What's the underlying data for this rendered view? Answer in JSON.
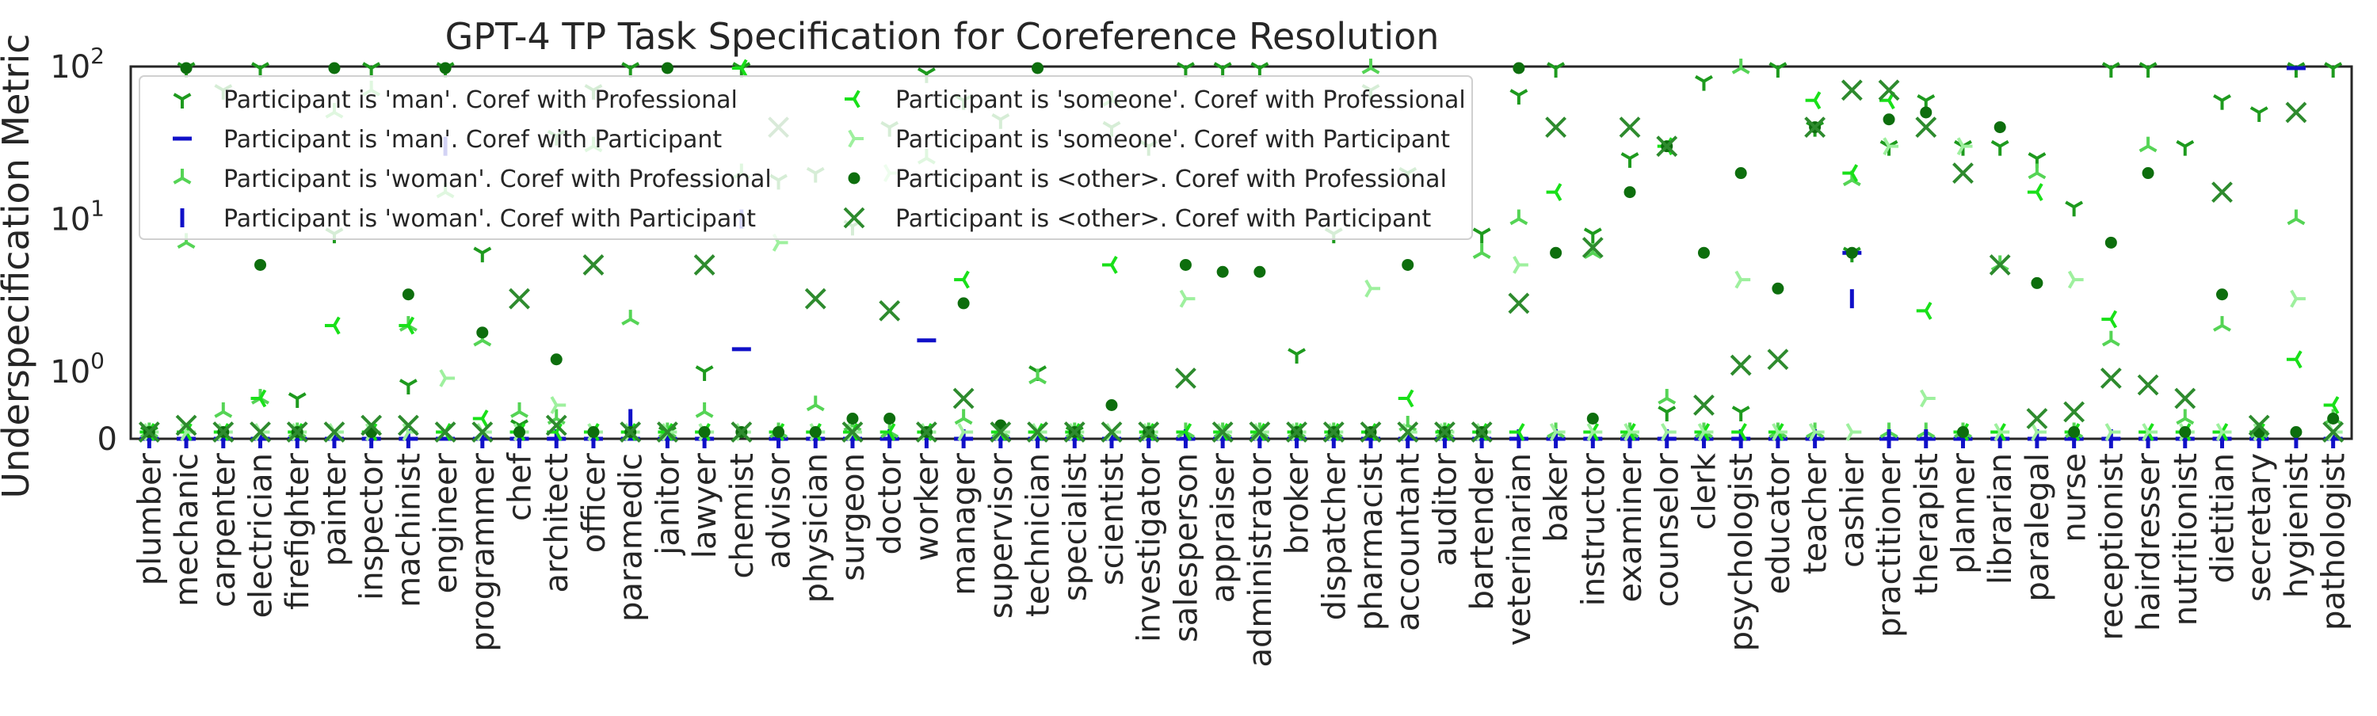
{
  "chart_data": {
    "type": "scatter",
    "title": "GPT-4 TP Task Specification for Coreference Resolution",
    "xlabel": "",
    "ylabel": "Underspecification Metric",
    "y_scale": "symlog",
    "y_ticks": [
      {
        "value": 0,
        "label": "0"
      },
      {
        "value": 1,
        "label": "10^0"
      },
      {
        "value": 10,
        "label": "10^1"
      },
      {
        "value": 100,
        "label": "10^2"
      }
    ],
    "ylim": [
      0,
      100
    ],
    "grid": false,
    "legend_position": "top-left",
    "categories": [
      "plumber",
      "mechanic",
      "carpenter",
      "electrician",
      "firefighter",
      "painter",
      "inspector",
      "machinist",
      "engineer",
      "programmer",
      "chef",
      "architect",
      "officer",
      "paramedic",
      "janitor",
      "lawyer",
      "chemist",
      "advisor",
      "physician",
      "surgeon",
      "doctor",
      "worker",
      "manager",
      "supervisor",
      "technician",
      "specialist",
      "scientist",
      "investigator",
      "salesperson",
      "appraiser",
      "administrator",
      "broker",
      "dispatcher",
      "pharmacist",
      "accountant",
      "auditor",
      "bartender",
      "veterinarian",
      "baker",
      "instructor",
      "examiner",
      "counselor",
      "clerk",
      "psychologist",
      "educator",
      "teacher",
      "cashier",
      "practitioner",
      "therapist",
      "planner",
      "librarian",
      "paralegal",
      "nurse",
      "receptionist",
      "hairdresser",
      "nutritionist",
      "dietitian",
      "secretary",
      "hygienist",
      "pathologist"
    ],
    "series": [
      {
        "name": "Participant is 'man'. Coref with Professional",
        "marker": "tri_down",
        "color": "#1e9a1e",
        "values": [
          0.1,
          100,
          70,
          100,
          0.6,
          8,
          100,
          0.8,
          100,
          6,
          0.2,
          35,
          70,
          100,
          0.1,
          1,
          100,
          18,
          20,
          9,
          40,
          90,
          60,
          45,
          1,
          0.1,
          40,
          30,
          100,
          100,
          100,
          1.3,
          8,
          70,
          20,
          0.05,
          8,
          65,
          100,
          8,
          25,
          0.4,
          80,
          0.4,
          100,
          40,
          6,
          30,
          60,
          30,
          30,
          25,
          12,
          100,
          100,
          30,
          60,
          50,
          100,
          100
        ]
      },
      {
        "name": "Participant is 'man'. Coref with Participant",
        "marker": "hline",
        "color": "#1010c8",
        "values": [
          0,
          0,
          0,
          0,
          0,
          0,
          0,
          0,
          0,
          0,
          0,
          0,
          0,
          0,
          0,
          0,
          1.4,
          0,
          0,
          0,
          0,
          1.6,
          0,
          0,
          0,
          0,
          0,
          0,
          0,
          0,
          0,
          0,
          0,
          0,
          0,
          0,
          0,
          0,
          0,
          0,
          0,
          0,
          0,
          0,
          0,
          0,
          6,
          0,
          0,
          0,
          0,
          0,
          0,
          0,
          0,
          0,
          0,
          0,
          100,
          0
        ]
      },
      {
        "name": "Participant is 'woman'. Coref with Professional",
        "marker": "tri_up",
        "color": "#55d455",
        "values": [
          0.1,
          7,
          0.4,
          0.6,
          0.1,
          50,
          70,
          2,
          15,
          1.6,
          0.4,
          0.3,
          30,
          2.2,
          0.1,
          0.4,
          20,
          0.1,
          0.5,
          0.2,
          0.1,
          25,
          0.3,
          0.1,
          0.9,
          0.1,
          60,
          0.1,
          0.1,
          0.1,
          0.1,
          0.1,
          0.1,
          100,
          0.2,
          0.1,
          6,
          10,
          0.1,
          6,
          0.1,
          0.6,
          0.1,
          100,
          0.1,
          0.1,
          18,
          0.1,
          0.1,
          0.1,
          5,
          20,
          0.1,
          1.6,
          30,
          0.3,
          2,
          0.1,
          10,
          0.3
        ]
      },
      {
        "name": "Participant is 'woman'. Coref with Participant",
        "marker": "vline",
        "color": "#1010c8",
        "values": [
          0,
          0,
          0,
          0,
          0,
          0,
          0,
          0,
          30,
          0,
          0,
          0,
          0,
          0.3,
          0,
          0,
          10,
          0,
          0,
          0,
          0,
          0,
          0,
          0,
          0,
          0,
          0,
          0,
          0,
          0,
          0,
          0,
          0,
          0,
          0,
          0,
          0,
          0,
          0,
          0,
          0,
          0,
          0,
          0,
          0,
          0,
          3,
          0,
          0,
          0,
          0,
          0,
          0,
          0,
          0,
          0,
          0,
          0,
          0,
          0
        ]
      },
      {
        "name": "Participant is 'someone'. Coref with Professional",
        "marker": "tri_left",
        "color": "#19e019",
        "values": [
          0.1,
          0.1,
          0.1,
          0.6,
          0.1,
          2,
          0.1,
          2,
          0.1,
          0.3,
          0.1,
          0.1,
          0.1,
          0.1,
          0.1,
          0.1,
          100,
          0.1,
          0.1,
          0.1,
          0.1,
          0.1,
          4,
          0.1,
          0.1,
          0.1,
          5,
          0.1,
          0.1,
          0.1,
          0.1,
          0.1,
          0.1,
          0.1,
          0.6,
          0.1,
          0.1,
          0.1,
          15,
          0.1,
          0.1,
          30,
          0.1,
          0.1,
          0.1,
          60,
          20,
          60,
          2.5,
          0.1,
          0.1,
          15,
          0.1,
          2.2,
          0.1,
          0.1,
          0.1,
          0.1,
          1.2,
          0.5
        ]
      },
      {
        "name": "Participant is 'someone'. Coref with Participant",
        "marker": "tri_right",
        "color": "#9ef09e",
        "values": [
          0.1,
          0.1,
          0.1,
          0.1,
          0.1,
          0.1,
          0.1,
          0.1,
          0.9,
          0.1,
          0.1,
          0.5,
          0.1,
          0.1,
          0.1,
          0.1,
          0.1,
          7,
          0.1,
          0.1,
          20,
          0.1,
          0.1,
          0.1,
          0.1,
          0.1,
          0.1,
          0.1,
          3,
          0.1,
          0.1,
          0.1,
          0.1,
          3.5,
          0.1,
          0.1,
          0.1,
          5,
          0.1,
          0.1,
          0.1,
          0.1,
          0.1,
          4,
          0.1,
          0.1,
          0.1,
          30,
          0.6,
          30,
          0.1,
          0.1,
          4,
          0.1,
          0.1,
          0.1,
          0.1,
          0.1,
          3,
          0.1
        ]
      },
      {
        "name": "Participant is <other>. Coref with Professional",
        "marker": "dot",
        "color": "#0d6e0d",
        "values": [
          0.1,
          100,
          0.1,
          5,
          0.1,
          100,
          0.1,
          3.2,
          100,
          1.8,
          0.1,
          1.2,
          0.1,
          0.1,
          100,
          0.1,
          0.1,
          0.1,
          0.1,
          0.3,
          0.3,
          0.1,
          2.8,
          0.2,
          100,
          0.1,
          0.5,
          0.1,
          5,
          4.5,
          4.5,
          0.1,
          0.1,
          0.1,
          5,
          0.1,
          0.1,
          100,
          6,
          0.3,
          15,
          30,
          6,
          20,
          3.5,
          40,
          6,
          45,
          50,
          0.1,
          40,
          3.8,
          0.1,
          7,
          20,
          0.1,
          3.2,
          0.1,
          0.1,
          0.3
        ]
      },
      {
        "name": "Participant is <other>. Coref with Participant",
        "marker": "x",
        "color": "#2e8b2e",
        "values": [
          0.1,
          0.2,
          0.1,
          0.1,
          0.1,
          0.1,
          0.2,
          0.2,
          0.1,
          0.1,
          3,
          0.2,
          5,
          0.1,
          0.1,
          5,
          0.1,
          40,
          3,
          0.1,
          2.5,
          0.1,
          0.6,
          0.1,
          0.1,
          0.1,
          0.1,
          0.1,
          0.9,
          0.1,
          0.1,
          0.1,
          0.1,
          0.1,
          0.1,
          0.1,
          0.1,
          2.8,
          40,
          6.5,
          40,
          30,
          0.5,
          1.1,
          1.2,
          40,
          70,
          70,
          40,
          20,
          5,
          0.3,
          0.4,
          0.9,
          0.8,
          0.6,
          15,
          0.2,
          50,
          0.1
        ]
      }
    ]
  }
}
